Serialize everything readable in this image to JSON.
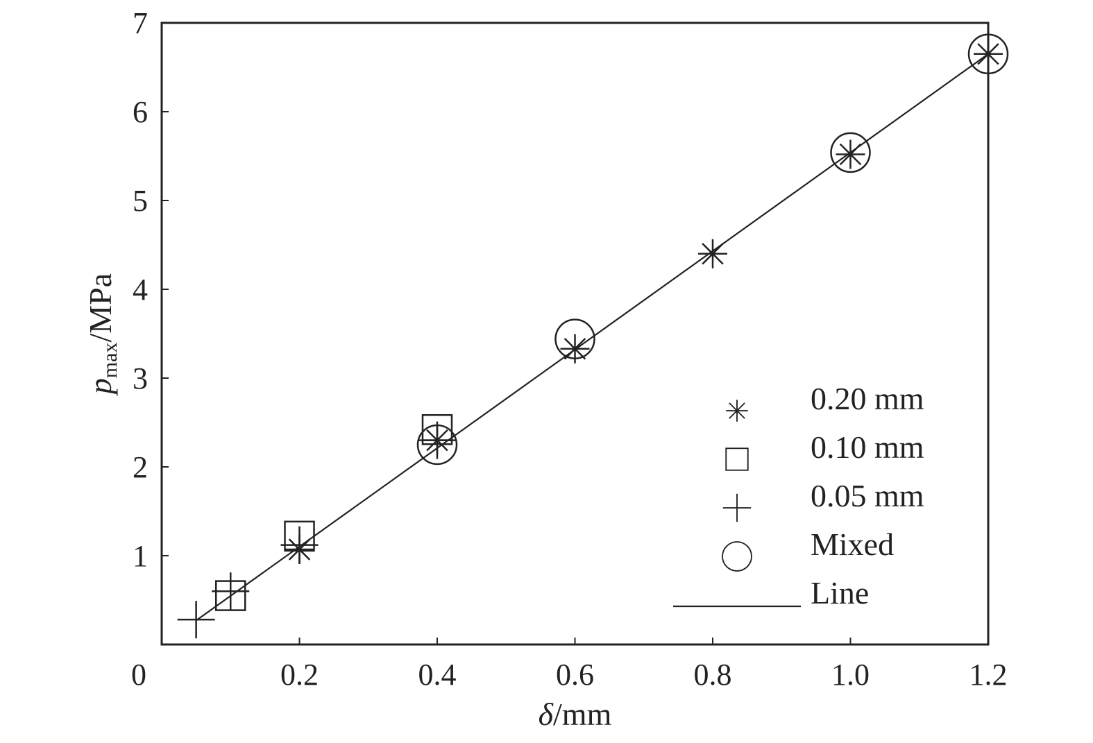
{
  "chart_data": {
    "type": "scatter",
    "xlabel_symbol": "δ",
    "xlabel_unit": "/mm",
    "ylabel_main": "p",
    "ylabel_sub": "max",
    "ylabel_unit": "/MPa",
    "xlim": [
      0,
      1.2
    ],
    "ylim": [
      0,
      7
    ],
    "x_ticks": [
      {
        "value": 0,
        "label": "0"
      },
      {
        "value": 0.2,
        "label": "0.2"
      },
      {
        "value": 0.4,
        "label": "0.4"
      },
      {
        "value": 0.6,
        "label": "0.6"
      },
      {
        "value": 0.8,
        "label": "0.8"
      },
      {
        "value": 1.0,
        "label": "1.0"
      },
      {
        "value": 1.2,
        "label": "1.2"
      }
    ],
    "y_ticks": [
      {
        "value": 1,
        "label": "1"
      },
      {
        "value": 2,
        "label": "2"
      },
      {
        "value": 3,
        "label": "3"
      },
      {
        "value": 4,
        "label": "4"
      },
      {
        "value": 5,
        "label": "5"
      },
      {
        "value": 6,
        "label": "6"
      },
      {
        "value": 7,
        "label": "7"
      }
    ],
    "grid": false,
    "legend_position": "bottom-right",
    "series": [
      {
        "name": "0.20 mm",
        "marker": "asterisk",
        "points": [
          [
            0.2,
            1.07
          ],
          [
            0.4,
            2.3
          ],
          [
            0.6,
            3.33
          ],
          [
            0.8,
            4.4
          ],
          [
            1.0,
            5.52
          ],
          [
            1.2,
            6.65
          ]
        ]
      },
      {
        "name": "0.10 mm",
        "marker": "square",
        "points": [
          [
            0.1,
            0.55
          ],
          [
            0.2,
            1.22
          ],
          [
            0.4,
            2.42
          ]
        ]
      },
      {
        "name": "0.05 mm",
        "marker": "plus",
        "points": [
          [
            0.05,
            0.28
          ],
          [
            0.1,
            0.6
          ],
          [
            0.2,
            1.12
          ],
          [
            0.4,
            2.3
          ]
        ]
      },
      {
        "name": "Mixed",
        "marker": "circle",
        "points": [
          [
            0.4,
            2.25
          ],
          [
            0.6,
            3.44
          ],
          [
            1.0,
            5.54
          ],
          [
            1.2,
            6.65
          ]
        ]
      }
    ],
    "line": {
      "name": "Line",
      "x": [
        0.05,
        1.2
      ],
      "y": [
        0.27,
        6.65
      ]
    }
  }
}
